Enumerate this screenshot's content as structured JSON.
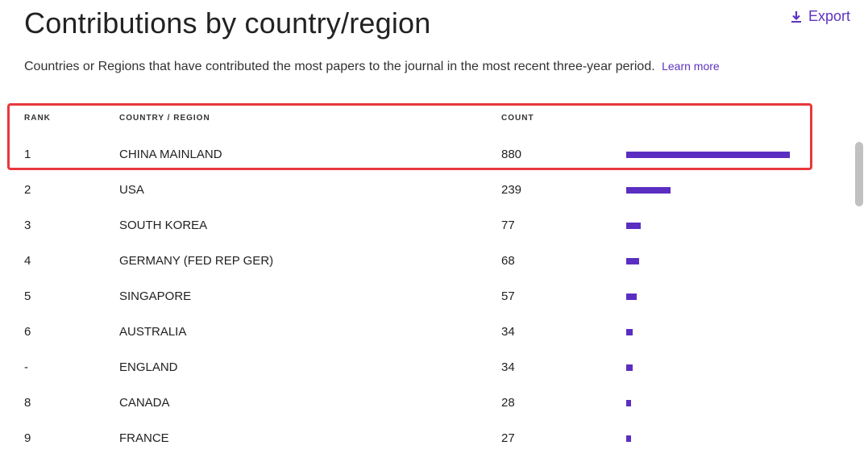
{
  "header": {
    "title": "Contributions by country/region",
    "export_label": "Export",
    "description": "Countries or Regions that have contributed the most papers to the journal in the most recent three-year period.",
    "learn_more": "Learn more"
  },
  "table": {
    "columns": {
      "rank": "RANK",
      "country": "COUNTRY / REGION",
      "count": "COUNT"
    },
    "max_count": 880,
    "rows": [
      {
        "rank": "1",
        "country": "CHINA MAINLAND",
        "count": "880",
        "value": 880
      },
      {
        "rank": "2",
        "country": "USA",
        "count": "239",
        "value": 239
      },
      {
        "rank": "3",
        "country": "SOUTH KOREA",
        "count": "77",
        "value": 77
      },
      {
        "rank": "4",
        "country": "GERMANY (FED REP GER)",
        "count": "68",
        "value": 68
      },
      {
        "rank": "5",
        "country": "SINGAPORE",
        "count": "57",
        "value": 57
      },
      {
        "rank": "6",
        "country": "AUSTRALIA",
        "count": "34",
        "value": 34
      },
      {
        "rank": "-",
        "country": "ENGLAND",
        "count": "34",
        "value": 34
      },
      {
        "rank": "8",
        "country": "CANADA",
        "count": "28",
        "value": 28
      },
      {
        "rank": "9",
        "country": "FRANCE",
        "count": "27",
        "value": 27
      }
    ]
  },
  "colors": {
    "accent": "#5e33bf",
    "bar": "#5b2ec2",
    "highlight": "#e8383d"
  },
  "icons": {
    "export": "download-icon"
  }
}
